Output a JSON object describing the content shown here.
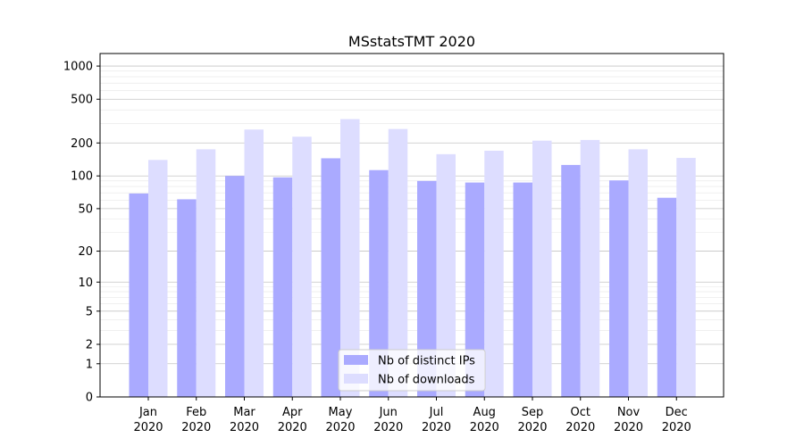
{
  "chart_data": {
    "type": "bar",
    "title": "MSstatsTMT 2020",
    "xlabel": "",
    "ylabel": "",
    "yscale": "symlog",
    "ylim": [
      0,
      1300
    ],
    "yticks": [
      {
        "value": 0,
        "label": "0"
      },
      {
        "value": 1,
        "label": "1"
      },
      {
        "value": 2,
        "label": "2"
      },
      {
        "value": 5,
        "label": "5"
      },
      {
        "value": 10,
        "label": "10"
      },
      {
        "value": 20,
        "label": "20"
      },
      {
        "value": 50,
        "label": "50"
      },
      {
        "value": 100,
        "label": "100"
      },
      {
        "value": 200,
        "label": "200"
      },
      {
        "value": 500,
        "label": "500"
      },
      {
        "value": 1000,
        "label": "1000"
      }
    ],
    "categories": [
      {
        "month": "Jan",
        "year": "2020"
      },
      {
        "month": "Feb",
        "year": "2020"
      },
      {
        "month": "Mar",
        "year": "2020"
      },
      {
        "month": "Apr",
        "year": "2020"
      },
      {
        "month": "May",
        "year": "2020"
      },
      {
        "month": "Jun",
        "year": "2020"
      },
      {
        "month": "Jul",
        "year": "2020"
      },
      {
        "month": "Aug",
        "year": "2020"
      },
      {
        "month": "Sep",
        "year": "2020"
      },
      {
        "month": "Oct",
        "year": "2020"
      },
      {
        "month": "Nov",
        "year": "2020"
      },
      {
        "month": "Dec",
        "year": "2020"
      }
    ],
    "series": [
      {
        "name": "Nb of distinct IPs",
        "color": "#aaaaff",
        "values": [
          69,
          61,
          100,
          97,
          145,
          113,
          90,
          87,
          87,
          126,
          91,
          63
        ]
      },
      {
        "name": "Nb of downloads",
        "color": "#ddddff",
        "values": [
          140,
          175,
          265,
          228,
          330,
          268,
          158,
          170,
          210,
          213,
          175,
          146
        ]
      }
    ],
    "grid": true,
    "legend": "bottom-center"
  }
}
